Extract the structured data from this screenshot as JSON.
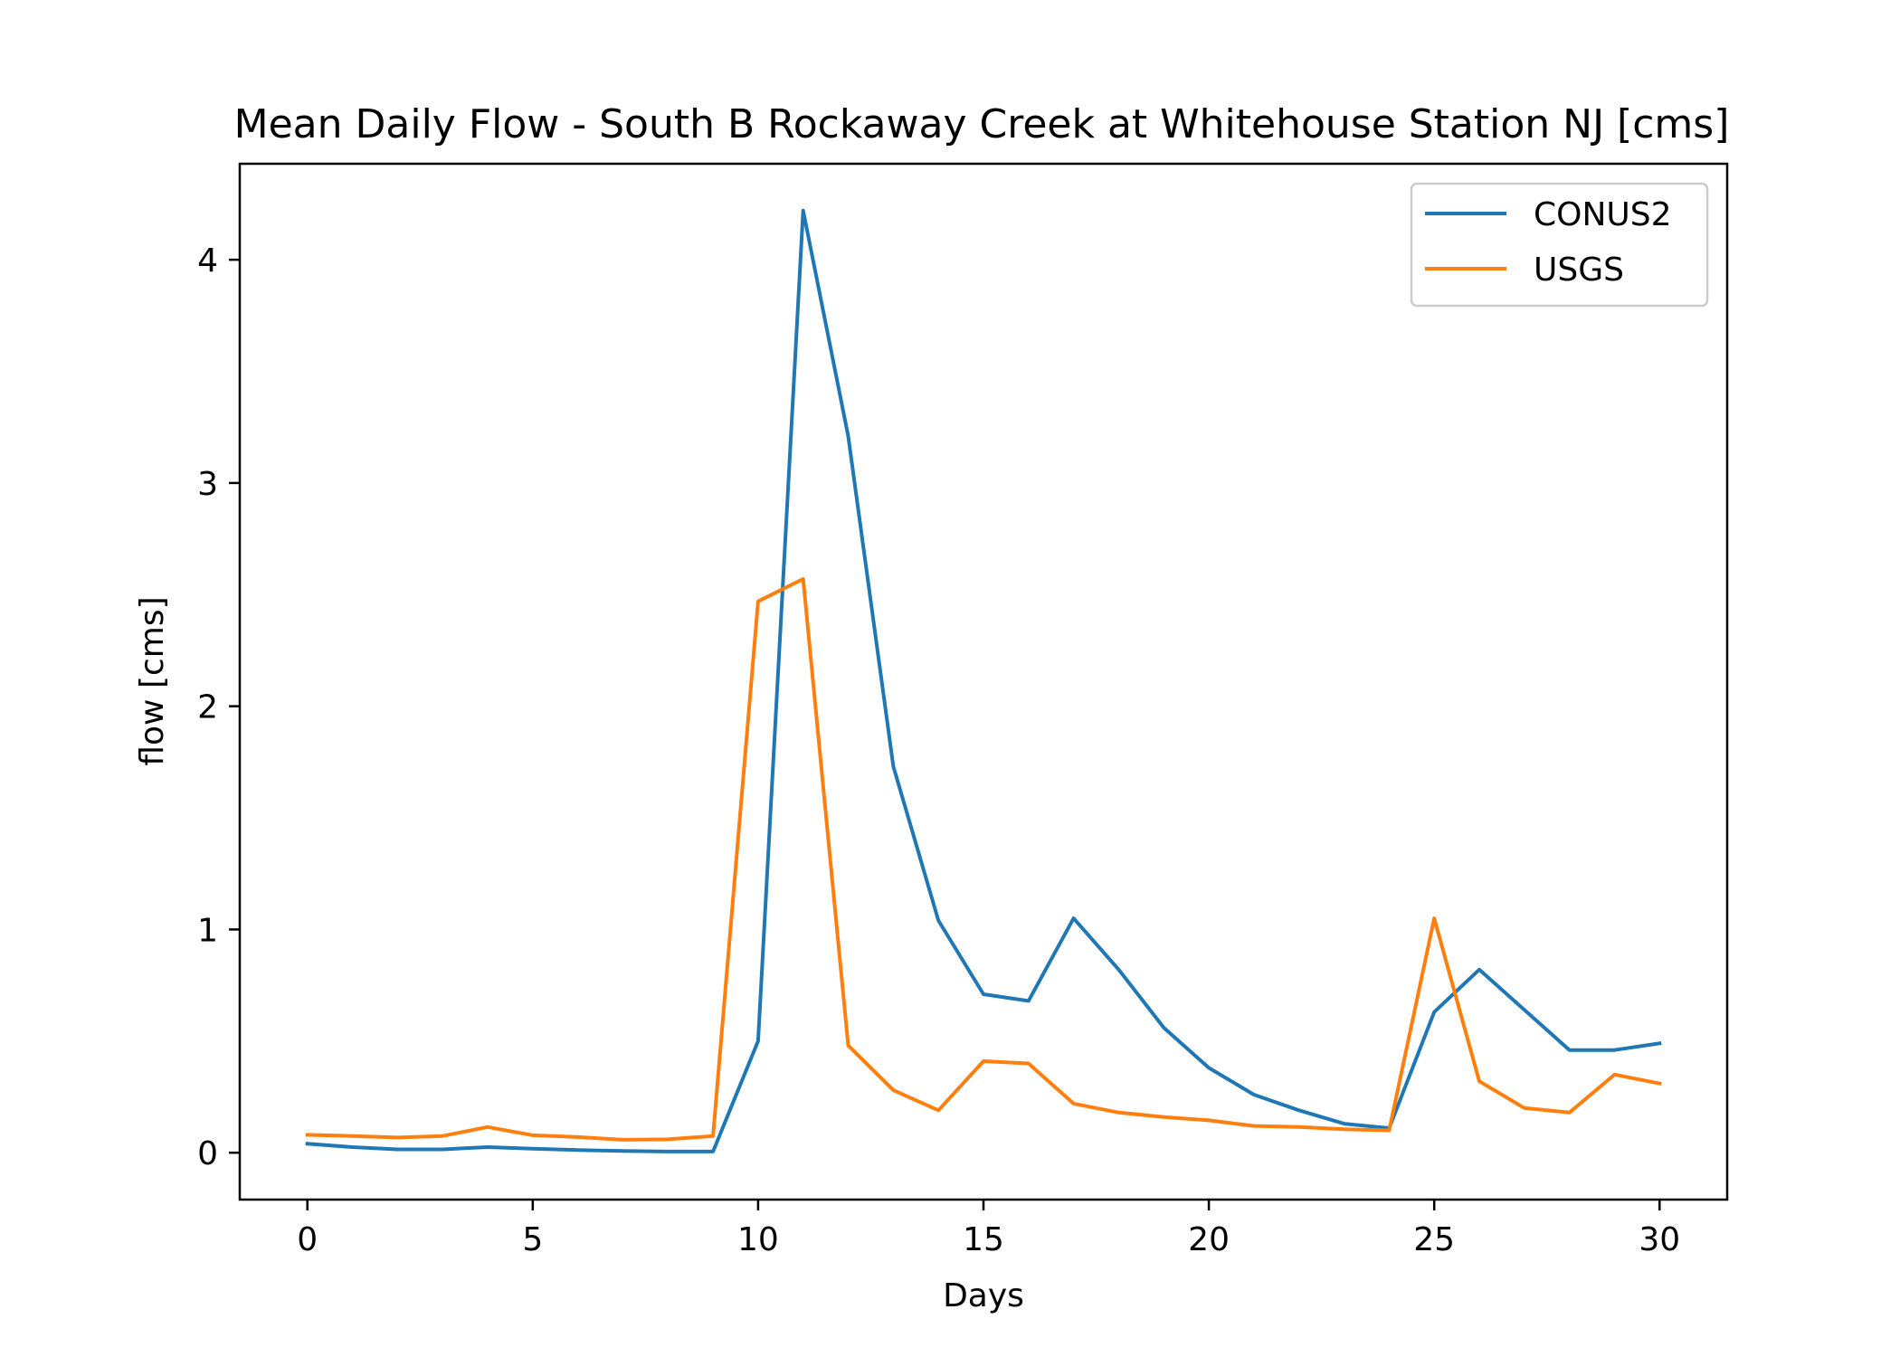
{
  "chart_data": {
    "type": "line",
    "title": "Mean Daily Flow - South B Rockaway Creek at Whitehouse Station NJ [cms]",
    "xlabel": "Days",
    "ylabel": "flow [cms]",
    "xlim": [
      -1.5,
      31.5
    ],
    "ylim": [
      -0.21,
      4.43
    ],
    "xticks": [
      0,
      5,
      10,
      15,
      20,
      25,
      30
    ],
    "yticks": [
      0,
      1,
      2,
      3,
      4
    ],
    "grid": false,
    "legend_position": "top-right",
    "x": [
      0,
      1,
      2,
      3,
      4,
      5,
      6,
      7,
      8,
      9,
      10,
      11,
      12,
      13,
      14,
      15,
      16,
      17,
      18,
      19,
      20,
      21,
      22,
      23,
      24,
      25,
      26,
      27,
      28,
      29,
      30
    ],
    "series": [
      {
        "name": "CONUS2",
        "color": "#1f77b4",
        "values": [
          0.04,
          0.025,
          0.015,
          0.015,
          0.025,
          0.018,
          0.012,
          0.008,
          0.005,
          0.005,
          0.5,
          4.22,
          3.21,
          1.73,
          1.04,
          0.71,
          0.68,
          1.05,
          0.82,
          0.56,
          0.38,
          0.26,
          0.19,
          0.13,
          0.11,
          0.63,
          0.82,
          0.64,
          0.46,
          0.46,
          0.49
        ]
      },
      {
        "name": "USGS",
        "color": "#ff7f0e",
        "values": [
          0.08,
          0.075,
          0.068,
          0.075,
          0.115,
          0.078,
          0.07,
          0.058,
          0.06,
          0.075,
          2.47,
          2.57,
          0.48,
          0.28,
          0.19,
          0.41,
          0.4,
          0.22,
          0.18,
          0.16,
          0.145,
          0.12,
          0.115,
          0.105,
          0.1,
          1.05,
          0.32,
          0.2,
          0.18,
          0.35,
          0.31
        ]
      }
    ]
  }
}
